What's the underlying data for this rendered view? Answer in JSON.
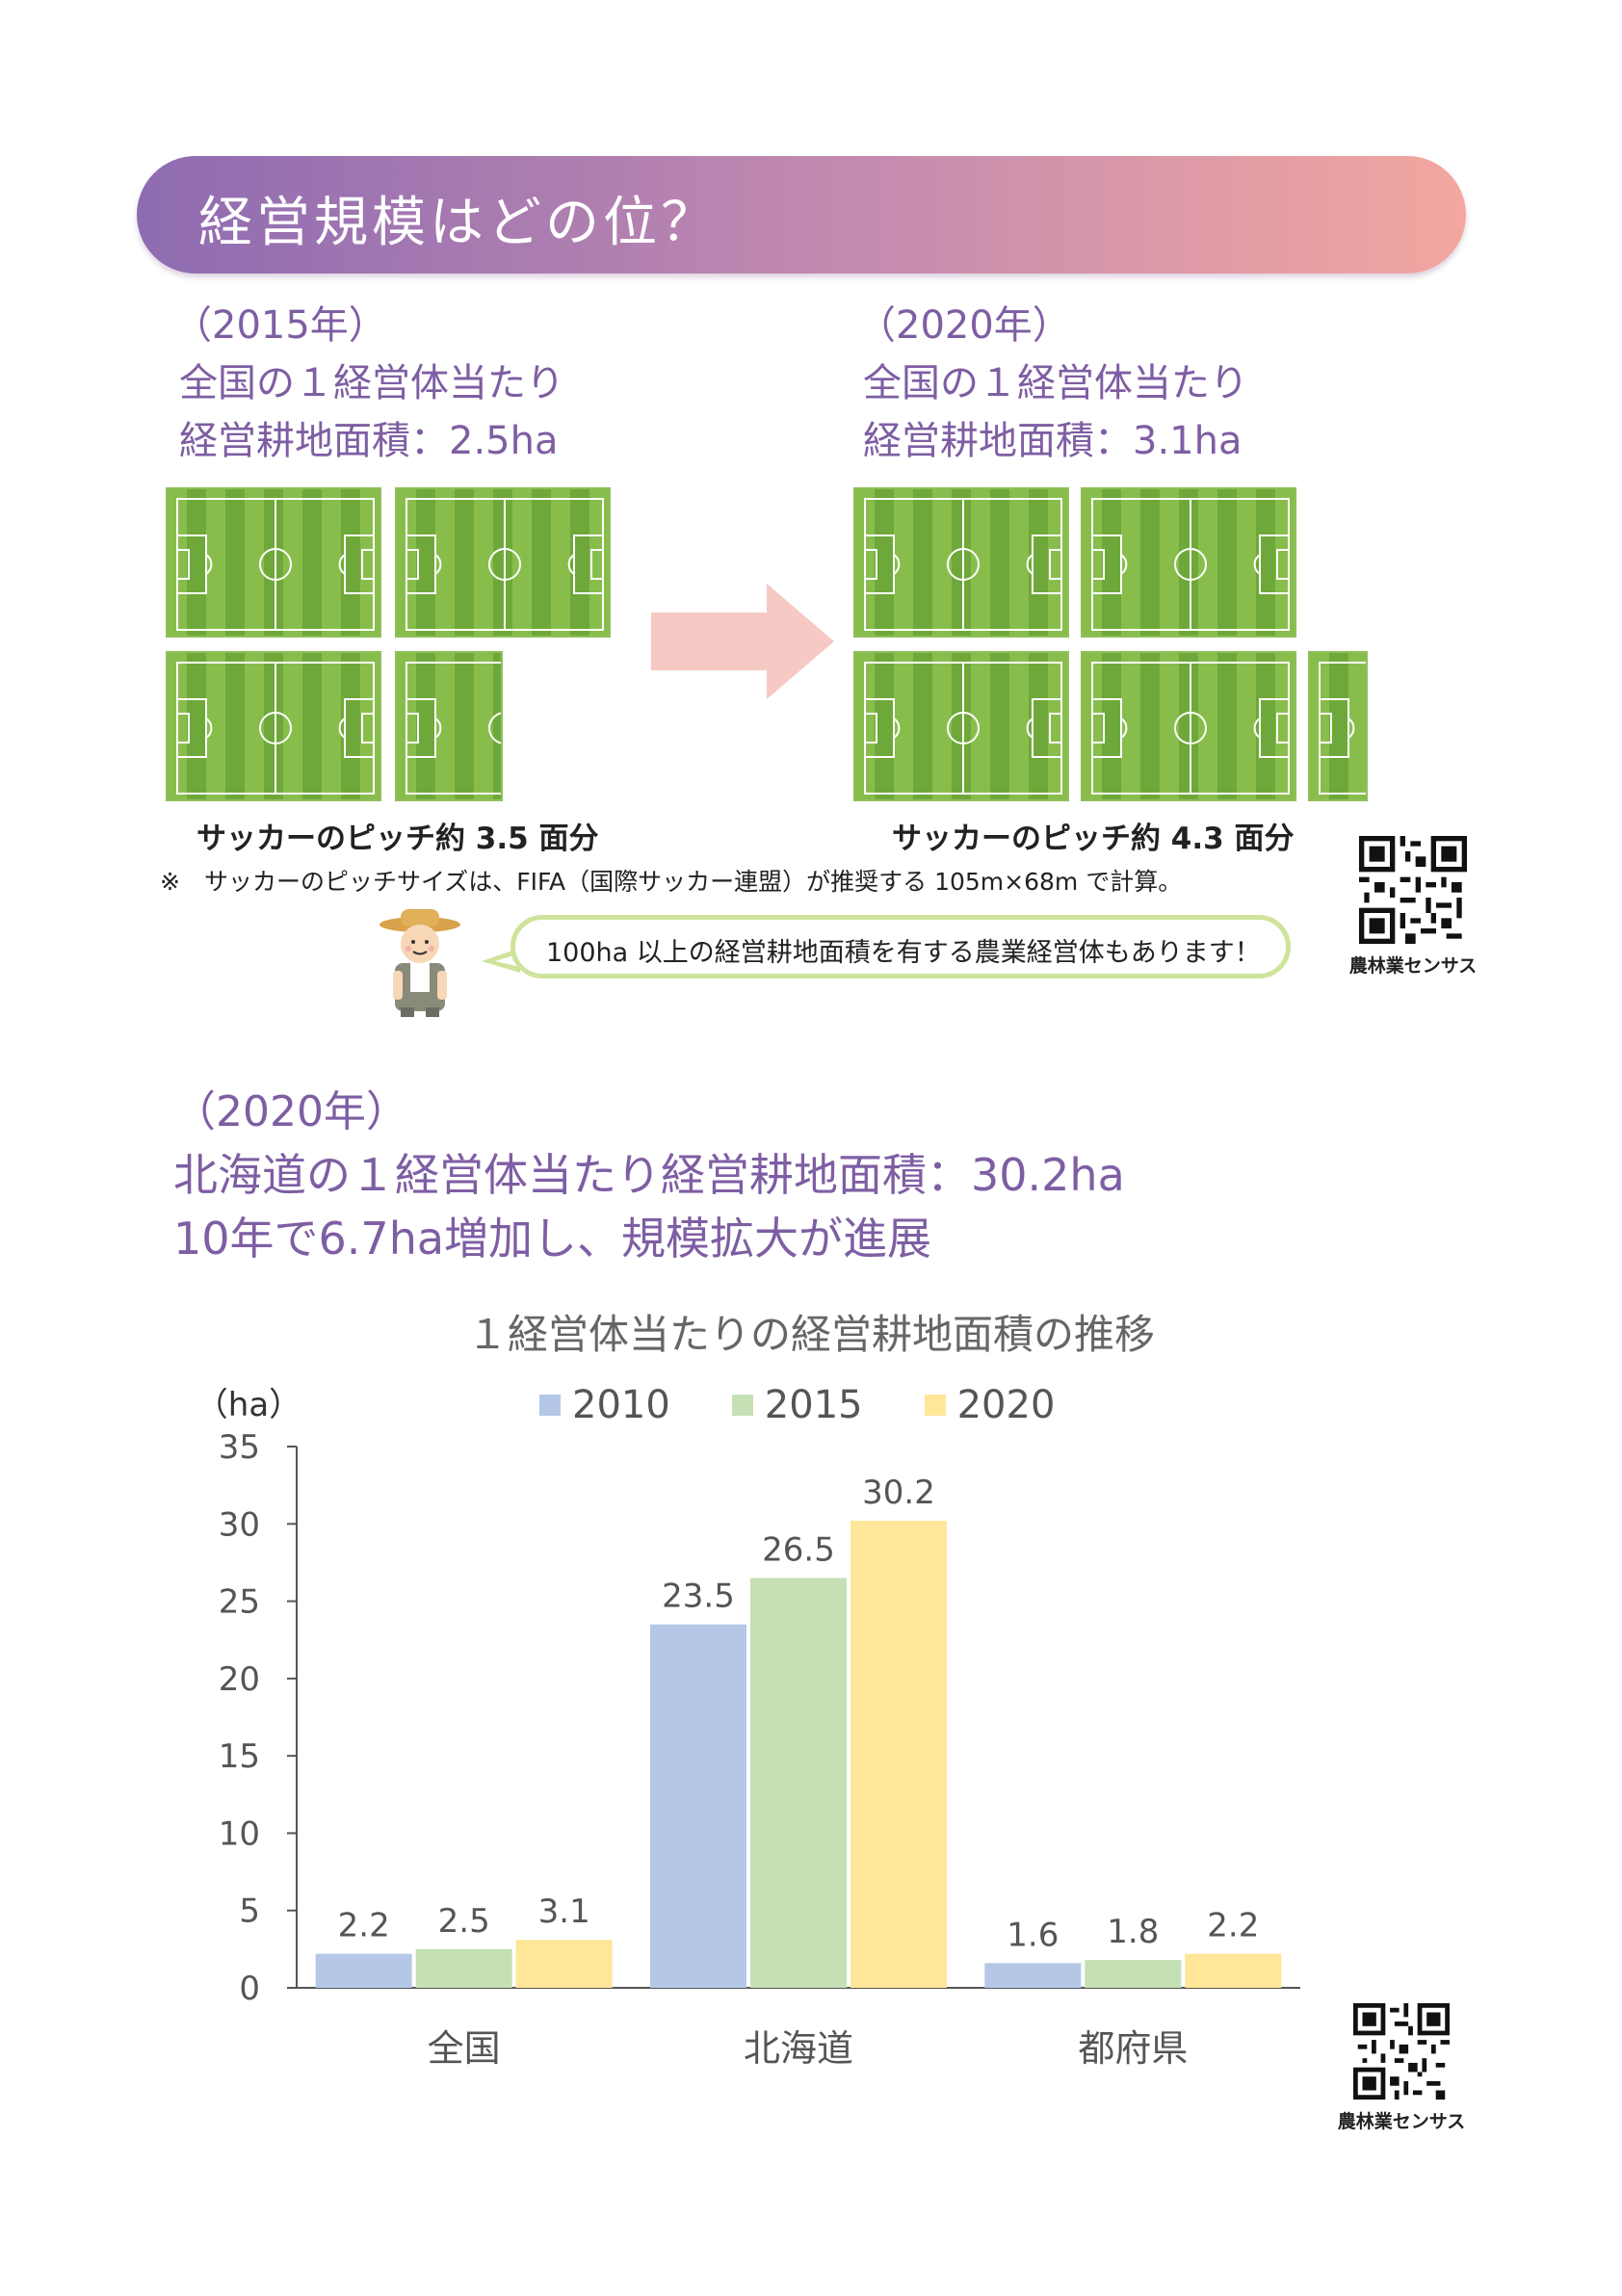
{
  "header": {
    "title": "経営規模はどの位？"
  },
  "comparison": {
    "left": {
      "year": "（2015年）",
      "line1": "全国の１経営体当たり",
      "line2": "経営耕地面積：2.5ha",
      "pitch_count": 3.5,
      "caption": "サッカーのピッチ約 3.5 面分"
    },
    "right": {
      "year": "（2020年）",
      "line1": "全国の１経営体当たり",
      "line2": "経営耕地面積：3.1ha",
      "pitch_count": 4.3,
      "caption": "サッカーのピッチ約 4.3 面分"
    },
    "note": "※　サッカーのピッチサイズは、FIFA（国際サッカー連盟）が推奨する 105m×68m で計算。",
    "speech": "100ha 以上の経営耕地面積を有する農業経営体もあります！"
  },
  "qr_label_top": "農林業センサス",
  "qr_label_bottom": "農林業センサス",
  "hokkaido": {
    "year": "（2020年）",
    "line1": "北海道の１経営体当たり経営耕地面積：30.2ha",
    "line2": "10年で6.7ha増加し、規模拡大が進展"
  },
  "colors": {
    "c2010": "#b4c7e7",
    "c2015": "#c5e0b4",
    "c2020": "#ffe699",
    "accent": "#7e5ea3"
  },
  "chart_data": {
    "type": "bar",
    "title": "１経営体当たりの経営耕地面積の推移",
    "ylabel": "（ha）",
    "ylim": [
      0,
      35
    ],
    "yticks": [
      0,
      5,
      10,
      15,
      20,
      25,
      30,
      35
    ],
    "categories": [
      "全国",
      "北海道",
      "都府県"
    ],
    "series": [
      {
        "name": "2010",
        "values": [
          2.2,
          23.5,
          1.6
        ]
      },
      {
        "name": "2015",
        "values": [
          2.5,
          26.5,
          1.8
        ]
      },
      {
        "name": "2020",
        "values": [
          3.1,
          30.2,
          2.2
        ]
      }
    ],
    "legend": "top",
    "grid": false
  }
}
